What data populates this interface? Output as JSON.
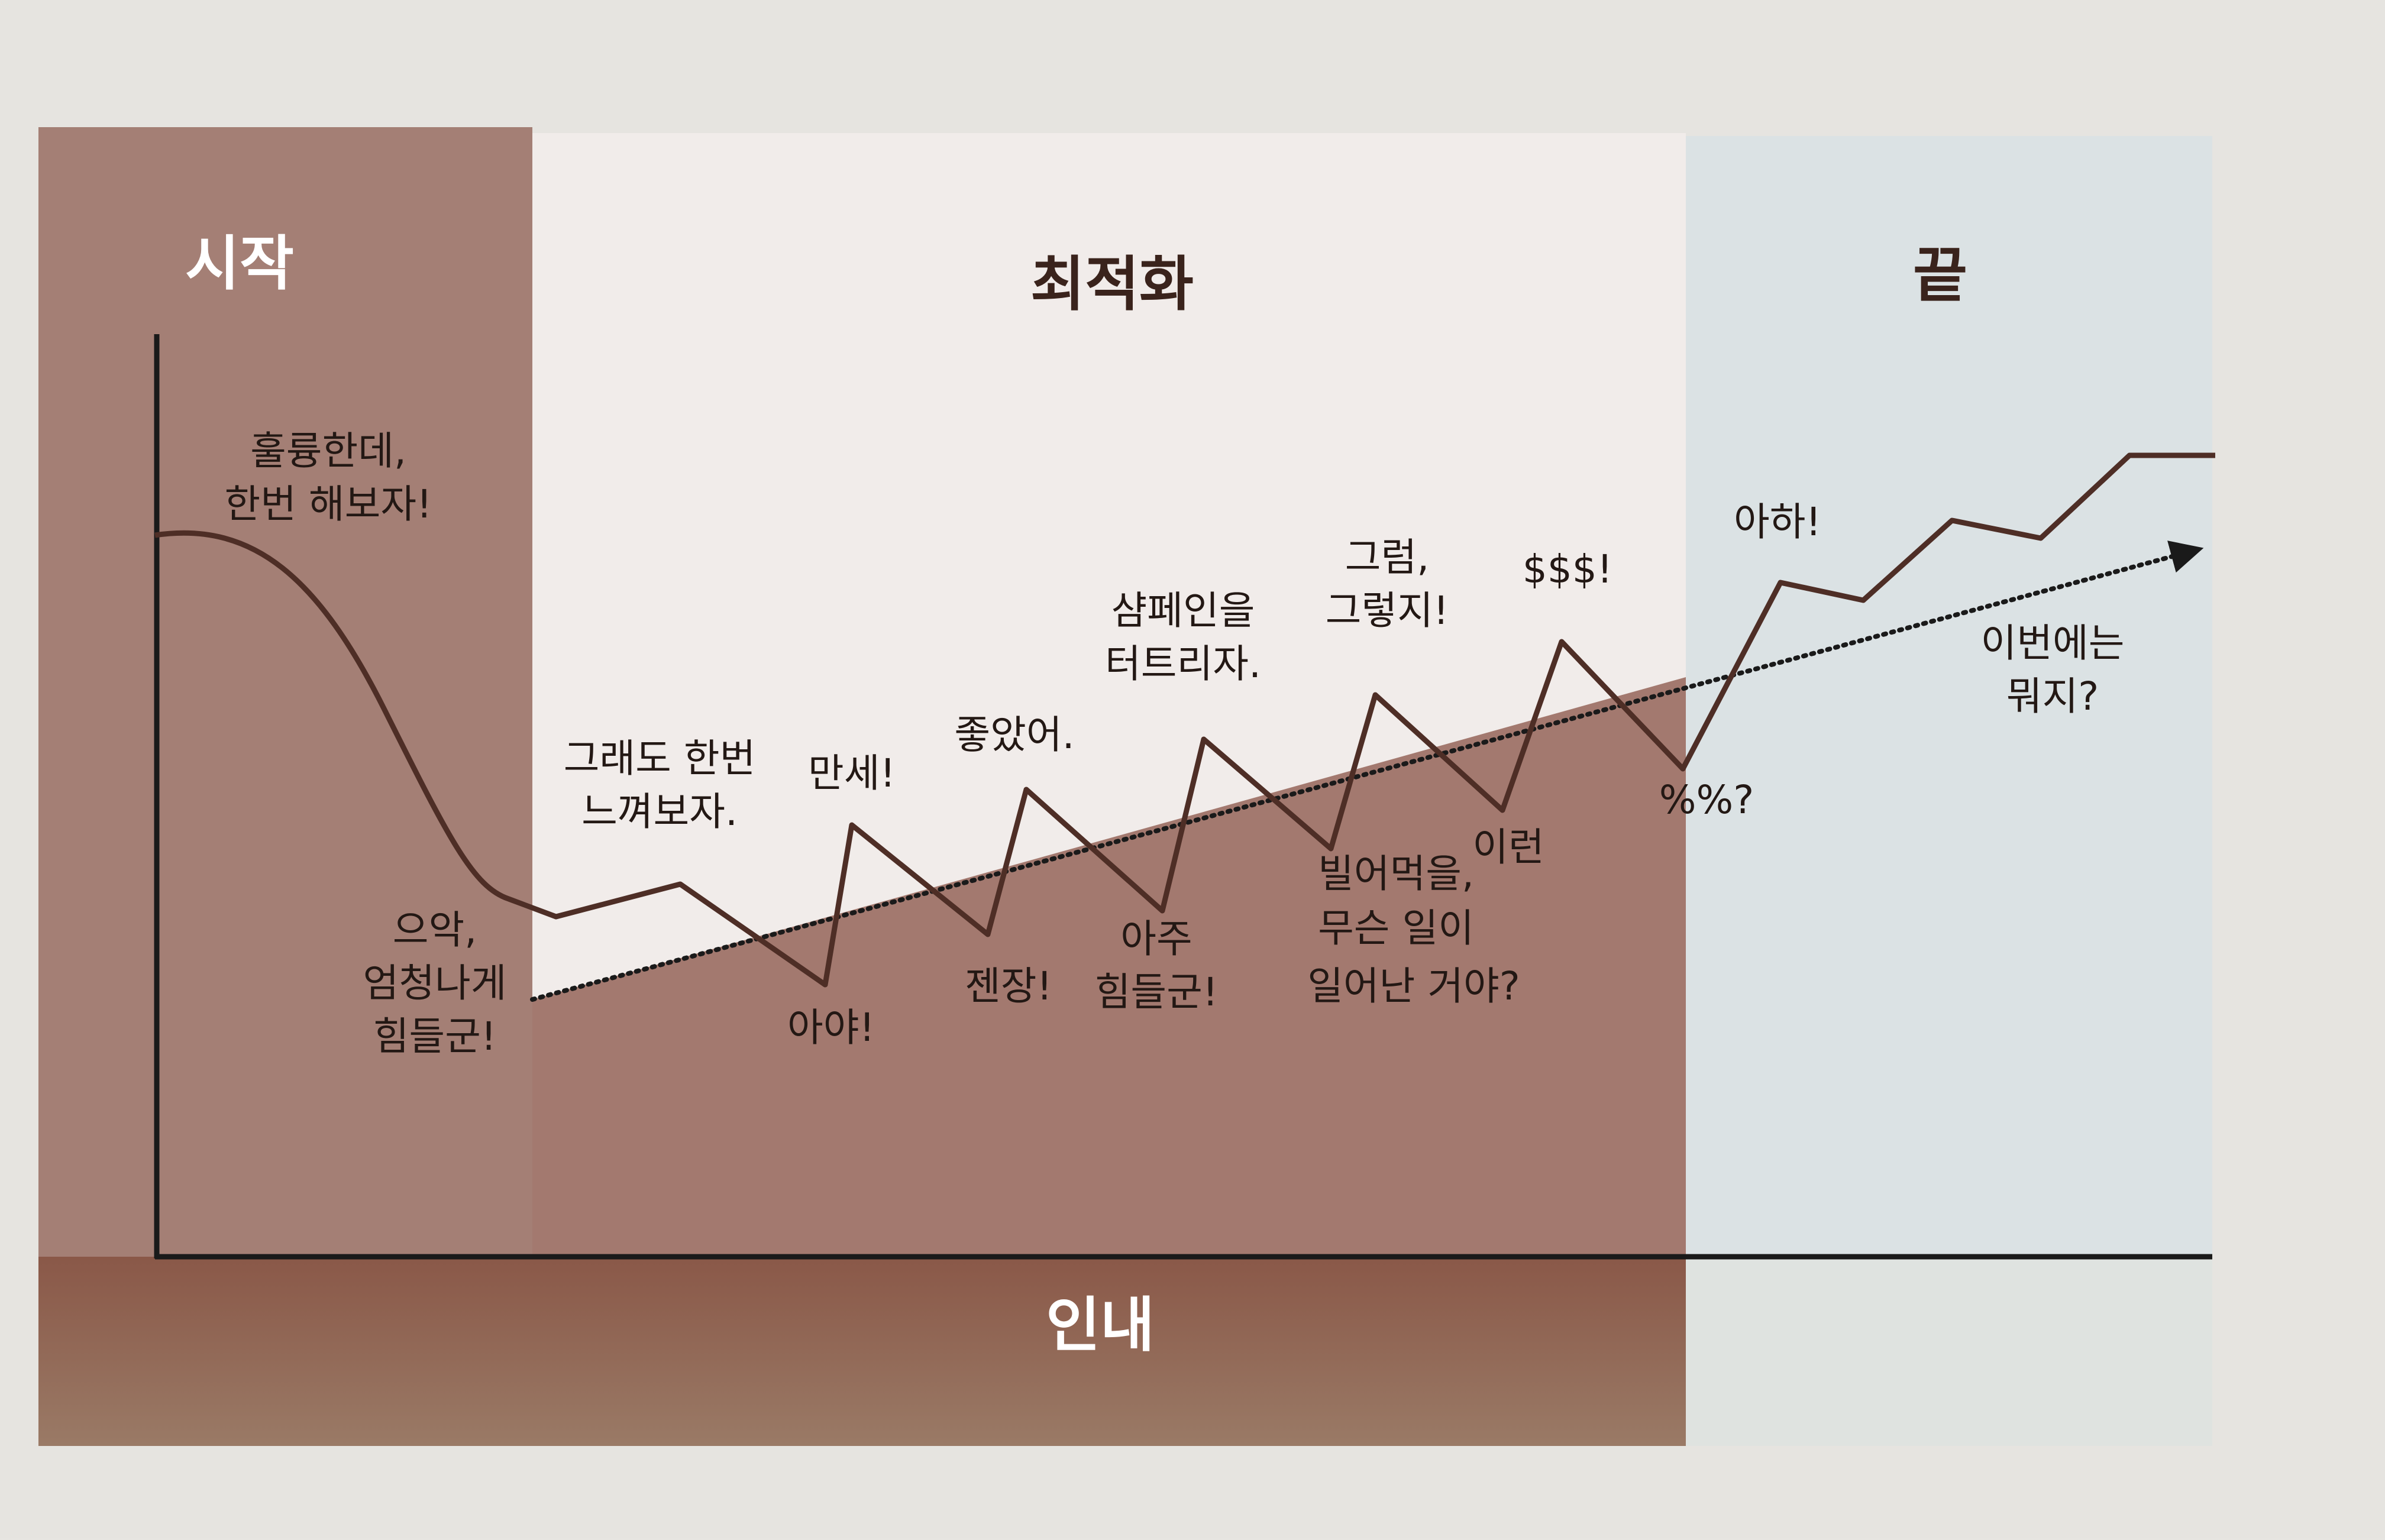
{
  "phases": {
    "start_label": "시작",
    "optimize_label": "최적화",
    "end_label": "끝",
    "patience_label": "인내"
  },
  "annotations": {
    "great_lets_try": [
      "훌륭한데,",
      "한번 해보자!"
    ],
    "ugh_so_hard": [
      "으악,",
      "엄청나게",
      "힘들군!"
    ],
    "still_try": [
      "그래도 한번",
      "느껴보자."
    ],
    "ouch": "아야!",
    "hooray": "만세!",
    "good": "좋았어.",
    "damn": "젠장!",
    "champagne": [
      "샴페인을",
      "터트리자."
    ],
    "very_hard": [
      "아주",
      "힘들군!"
    ],
    "of_course": [
      "그럼,",
      "그렇지!"
    ],
    "what_happened": [
      "빌어먹을,",
      "무슨 일이",
      "일어난 거야?"
    ],
    "money": "$$$!",
    "oh_no": "이런",
    "percent": "%%?",
    "aha": "아하!",
    "whats_next": [
      "이번에는",
      "뭐지?"
    ]
  },
  "colors": {
    "start_band": "#a07a70",
    "optimize_band": "#f0ebe9",
    "end_band": "#d9e1e3",
    "patience_fill": "#a1776f",
    "curve": "#4e2e26",
    "axis": "#1a1a1a",
    "header_text": "#ffffff",
    "title_text": "#3a231c",
    "bottom_band": "#8d5a48"
  }
}
